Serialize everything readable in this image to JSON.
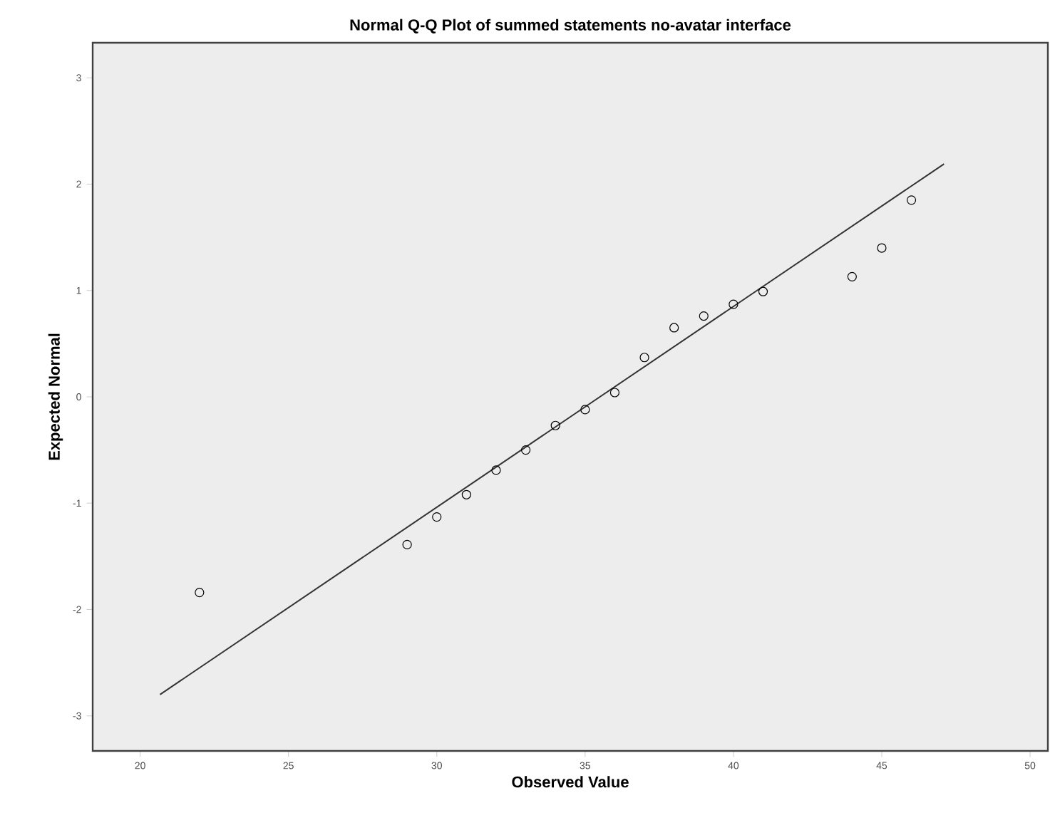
{
  "chart_data": {
    "type": "scatter",
    "title": "Normal Q-Q Plot of summed statements no-avatar interface",
    "xlabel": "Observed Value",
    "ylabel": "Expected Normal",
    "xlim": [
      18.4,
      50.6
    ],
    "ylim": [
      -3.33,
      3.33
    ],
    "xticks": [
      20,
      25,
      30,
      35,
      40,
      45,
      50
    ],
    "yticks": [
      -3,
      -2,
      -1,
      0,
      1,
      2,
      3
    ],
    "marker": "circle",
    "series": [
      {
        "color": "#000000",
        "x": [
          22,
          29,
          30,
          31,
          32,
          33,
          34,
          35,
          36,
          37,
          38,
          39,
          40,
          41,
          44,
          45,
          46
        ],
        "values": [
          -1.84,
          -1.39,
          -1.13,
          -0.92,
          -0.69,
          -0.5,
          -0.27,
          -0.12,
          0.04,
          0.37,
          0.65,
          0.76,
          0.87,
          0.99,
          1.13,
          1.4,
          1.85
        ]
      },
      {
        "type": "line",
        "marker": "none",
        "color": "#333333",
        "x": [
          20.67,
          47.1
        ],
        "values": [
          -2.8,
          2.19
        ]
      }
    ]
  }
}
